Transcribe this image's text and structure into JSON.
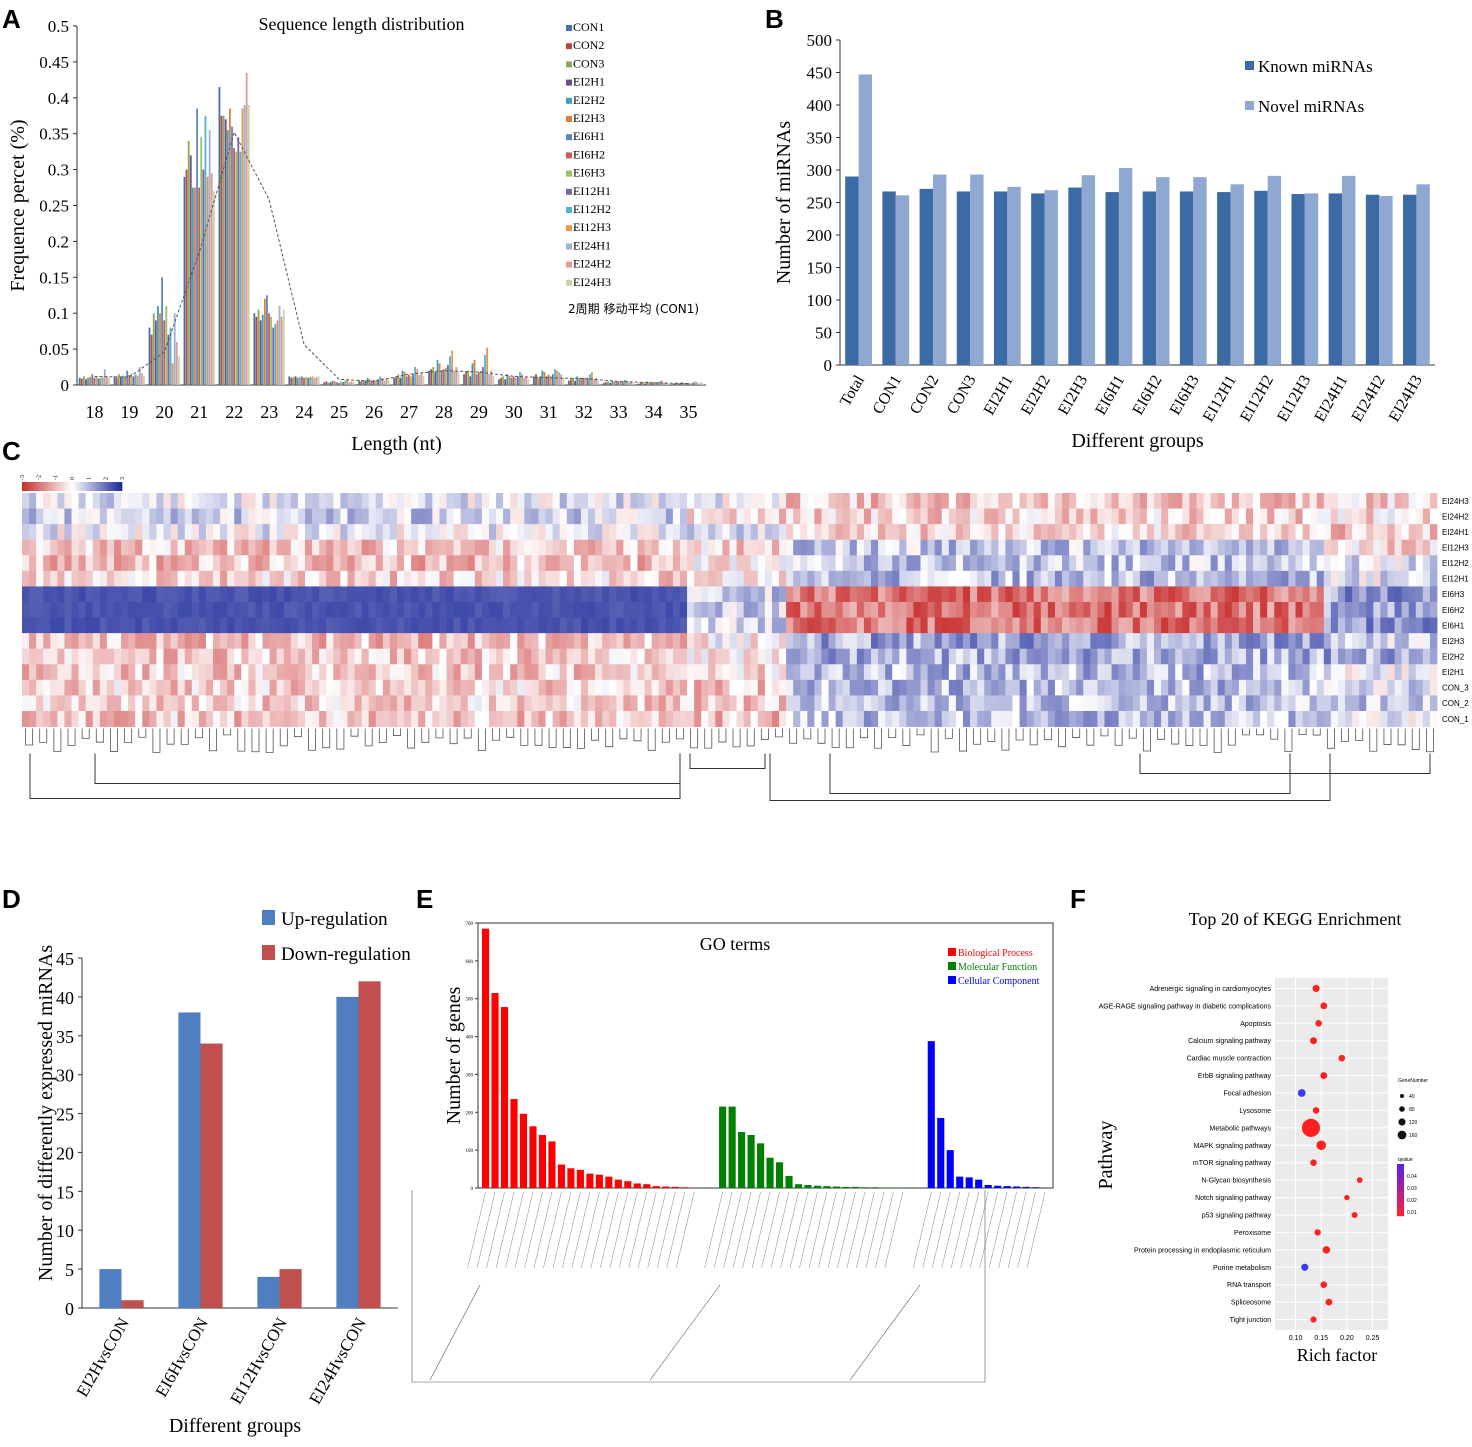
{
  "figure": {
    "panel_labels": [
      "A",
      "B",
      "C",
      "D",
      "E",
      "F"
    ]
  },
  "chart_data": [
    {
      "panel": "A",
      "type": "bar",
      "title": "Sequence length distribution",
      "xlabel": "Length (nt)",
      "ylabel": "Frequence percet (%)",
      "ylim": [
        0,
        0.5
      ],
      "yticks": [
        0,
        0.05,
        0.1,
        0.15,
        0.2,
        0.25,
        0.3,
        0.35,
        0.4,
        0.45,
        0.5
      ],
      "ytick_labels": [
        "0",
        "0.05",
        "0.1",
        "0.15",
        "0.2",
        "0.25",
        "0.3",
        "0.35",
        "0.4",
        "0.45",
        "0.5"
      ],
      "categories": [
        "18",
        "19",
        "20",
        "21",
        "22",
        "23",
        "24",
        "25",
        "26",
        "27",
        "28",
        "29",
        "30",
        "31",
        "32",
        "33",
        "34",
        "35"
      ],
      "series_names": [
        "CON1",
        "CON2",
        "CON3",
        "EI2H1",
        "EI2H2",
        "EI2H3",
        "EI6H1",
        "EI6H2",
        "EI6H3",
        "EI12H1",
        "EI12H2",
        "EI12H3",
        "EI24H1",
        "EI24H2",
        "EI24H3"
      ],
      "series_colors": [
        "#4a6fa5",
        "#b84a4a",
        "#8aab52",
        "#6b4f8c",
        "#3fa0b8",
        "#d9813a",
        "#5b86c2",
        "#c95a5a",
        "#9bbf61",
        "#7e63a3",
        "#52b5cc",
        "#e6964d",
        "#9cb0d6",
        "#e09a9a",
        "#c6d5a3"
      ],
      "values": [
        [
          0.01,
          0.009,
          0.012,
          0.008,
          0.01,
          0.011,
          0.015,
          0.01,
          0.012,
          0.009,
          0.01,
          0.011,
          0.022,
          0.012,
          0.01
        ],
        [
          0.012,
          0.01,
          0.015,
          0.011,
          0.013,
          0.012,
          0.02,
          0.014,
          0.016,
          0.012,
          0.015,
          0.013,
          0.025,
          0.016,
          0.012
        ],
        [
          0.08,
          0.07,
          0.1,
          0.09,
          0.11,
          0.1,
          0.15,
          0.09,
          0.11,
          0.07,
          0.08,
          0.03,
          0.1,
          0.06,
          0.04
        ],
        [
          0.29,
          0.3,
          0.34,
          0.32,
          0.275,
          0.275,
          0.385,
          0.275,
          0.345,
          0.3,
          0.375,
          0.29,
          0.355,
          0.295,
          0.27
        ],
        [
          0.415,
          0.375,
          0.375,
          0.37,
          0.355,
          0.385,
          0.36,
          0.33,
          0.325,
          0.345,
          0.325,
          0.385,
          0.39,
          0.435,
          0.39
        ],
        [
          0.1,
          0.095,
          0.105,
          0.09,
          0.098,
          0.12,
          0.125,
          0.1,
          0.095,
          0.08,
          0.085,
          0.09,
          0.11,
          0.095,
          0.105
        ],
        [
          0.012,
          0.01,
          0.011,
          0.012,
          0.01,
          0.011,
          0.012,
          0.01,
          0.011,
          0.01,
          0.011,
          0.012,
          0.01,
          0.011,
          0.012
        ],
        [
          0.004,
          0.005,
          0.003,
          0.004,
          0.006,
          0.005,
          0.004,
          0.003,
          0.005,
          0.004,
          0.006,
          0.008,
          0.004,
          0.005,
          0.004
        ],
        [
          0.006,
          0.005,
          0.007,
          0.006,
          0.01,
          0.008,
          0.006,
          0.007,
          0.006,
          0.008,
          0.012,
          0.01,
          0.006,
          0.009,
          0.007
        ],
        [
          0.01,
          0.012,
          0.015,
          0.01,
          0.02,
          0.018,
          0.012,
          0.014,
          0.012,
          0.015,
          0.025,
          0.022,
          0.014,
          0.018,
          0.012
        ],
        [
          0.02,
          0.022,
          0.025,
          0.018,
          0.035,
          0.03,
          0.02,
          0.022,
          0.024,
          0.028,
          0.04,
          0.048,
          0.02,
          0.025,
          0.018
        ],
        [
          0.015,
          0.018,
          0.02,
          0.012,
          0.03,
          0.035,
          0.015,
          0.018,
          0.02,
          0.025,
          0.042,
          0.052,
          0.015,
          0.02,
          0.012
        ],
        [
          0.008,
          0.01,
          0.012,
          0.008,
          0.015,
          0.012,
          0.01,
          0.012,
          0.01,
          0.012,
          0.018,
          0.015,
          0.01,
          0.012,
          0.008
        ],
        [
          0.012,
          0.015,
          0.01,
          0.012,
          0.02,
          0.018,
          0.012,
          0.014,
          0.012,
          0.015,
          0.022,
          0.02,
          0.018,
          0.015,
          0.01
        ],
        [
          0.006,
          0.008,
          0.01,
          0.006,
          0.012,
          0.01,
          0.008,
          0.01,
          0.008,
          0.01,
          0.015,
          0.018,
          0.008,
          0.01,
          0.006
        ],
        [
          0.003,
          0.004,
          0.005,
          0.003,
          0.006,
          0.005,
          0.004,
          0.005,
          0.004,
          0.005,
          0.007,
          0.006,
          0.004,
          0.005,
          0.003
        ],
        [
          0.002,
          0.003,
          0.004,
          0.002,
          0.005,
          0.004,
          0.003,
          0.004,
          0.003,
          0.004,
          0.005,
          0.006,
          0.003,
          0.004,
          0.002
        ],
        [
          0.002,
          0.003,
          0.003,
          0.002,
          0.004,
          0.003,
          0.002,
          0.003,
          0.002,
          0.003,
          0.005,
          0.004,
          0.002,
          0.003,
          0.002
        ]
      ],
      "trendline": {
        "label": "2周期 移动平均 (CON1)",
        "values": [
          0.012,
          0.011,
          0.046,
          0.185,
          0.352,
          0.258,
          0.056,
          0.008,
          0.005,
          0.015,
          0.02,
          0.018,
          0.012,
          0.01,
          0.009,
          0.005,
          0.003,
          0.002
        ]
      }
    },
    {
      "panel": "B",
      "type": "bar",
      "title": "",
      "xlabel": "Different groups",
      "ylabel": "Number of miRNAs",
      "ylim": [
        0,
        500
      ],
      "yticks": [
        0,
        50,
        100,
        150,
        200,
        250,
        300,
        350,
        400,
        450,
        500
      ],
      "ytick_labels": [
        "0",
        "50",
        "100",
        "150",
        "200",
        "250",
        "300",
        "350",
        "400",
        "450",
        "500"
      ],
      "categories": [
        "Total",
        "CON1",
        "CON2",
        "CON3",
        "EI2H1",
        "EI2H2",
        "EI2H3",
        "EI6H1",
        "EI6H2",
        "EI6H3",
        "EI12H1",
        "EI12H2",
        "EI12H3",
        "EI24H1",
        "EI24H2",
        "EI24H3"
      ],
      "series": [
        {
          "name": "Known miRNAs",
          "color": "#3c6aa5",
          "values": [
            290,
            267,
            271,
            267,
            267,
            264,
            273,
            266,
            267,
            267,
            266,
            268,
            263,
            264,
            262,
            262
          ]
        },
        {
          "name": "Novel miRNAs",
          "color": "#8fa8d2",
          "values": [
            447,
            261,
            293,
            293,
            274,
            269,
            292,
            303,
            289,
            289,
            278,
            291,
            264,
            291,
            260,
            278
          ]
        }
      ]
    },
    {
      "panel": "C",
      "type": "heatmap",
      "title": "",
      "color_scale": {
        "low": "#c93030",
        "mid": "#ffffff",
        "high": "#1c2a9a"
      },
      "legend_ticks": [
        "-3",
        "-2",
        "-1",
        "0",
        "1",
        "2",
        "3"
      ],
      "rows": [
        "EI24H3",
        "EI24H2",
        "EI24H1",
        "EI12H3",
        "EI12H2",
        "EI12H1",
        "EI6H3",
        "EI6H2",
        "EI6H1",
        "EI2H3",
        "EI2H2",
        "EI2H1",
        "CON_3",
        "CON_2",
        "CON_1"
      ],
      "column_count": 200,
      "cluster_pattern": [
        {
          "cols": [
            0,
            94
          ],
          "values": [
            0.2,
            0.4,
            0.1,
            -0.5,
            -0.6,
            -0.4,
            1.6,
            1.6,
            1.6,
            -0.6,
            -0.5,
            -0.5,
            -0.4,
            -0.4,
            -0.5
          ]
        },
        {
          "cols": [
            94,
            108
          ],
          "values": [
            0.1,
            -0.3,
            0.2,
            -0.4,
            -0.2,
            -0.2,
            0.4,
            0.4,
            0.4,
            -0.1,
            -0.2,
            -0.3,
            -0.5,
            -0.5,
            -0.6
          ]
        },
        {
          "cols": [
            108,
            184
          ],
          "values": [
            -0.5,
            -0.4,
            -0.4,
            0.5,
            0.5,
            0.6,
            -1.3,
            -1.3,
            -1.3,
            0.8,
            0.7,
            0.6,
            0.6,
            0.5,
            0.6
          ]
        },
        {
          "cols": [
            184,
            200
          ],
          "values": [
            -0.4,
            -0.3,
            -0.5,
            -0.3,
            0.2,
            0.2,
            0.9,
            0.9,
            0.9,
            0.4,
            0.8,
            0.1,
            0.3,
            0.5,
            0.2
          ]
        }
      ]
    },
    {
      "panel": "D",
      "type": "bar",
      "title": "",
      "xlabel": "Different groups",
      "ylabel": "Number of differently expressed miRNAs",
      "ylim": [
        0,
        45
      ],
      "yticks": [
        0,
        5,
        10,
        15,
        20,
        25,
        30,
        35,
        40,
        45
      ],
      "ytick_labels": [
        "0",
        "5",
        "10",
        "15",
        "20",
        "25",
        "30",
        "35",
        "40",
        "45"
      ],
      "categories": [
        "EI2HvsCON",
        "EI6HvsCON",
        "EI12HvsCON",
        "EI24HvsCON"
      ],
      "series": [
        {
          "name": "Up-regulation",
          "color": "#4f7fc1",
          "values": [
            5,
            38,
            4,
            40
          ]
        },
        {
          "name": "Down-regulation",
          "color": "#c0504d",
          "values": [
            1,
            34,
            5,
            42
          ]
        }
      ]
    },
    {
      "panel": "E",
      "type": "bar",
      "title": "GO terms",
      "xlabel": "",
      "ylabel": "Number of genes",
      "ylim": [
        0,
        700
      ],
      "yticks": [
        0,
        100,
        200,
        300,
        400,
        500,
        600,
        700
      ],
      "ytick_labels": [
        "0",
        "100",
        "200",
        "300",
        "400",
        "500",
        "600",
        "700"
      ],
      "series": [
        {
          "name": "Biological Process",
          "color": "#ff0000",
          "values": [
            685,
            515,
            478,
            235,
            196,
            163,
            140,
            123,
            62,
            52,
            48,
            38,
            35,
            30,
            22,
            18,
            12,
            10,
            5,
            4,
            3,
            2,
            1
          ]
        },
        {
          "name": "Molecular Function",
          "color": "#008000",
          "values": [
            215,
            215,
            148,
            140,
            118,
            80,
            68,
            32,
            10,
            8,
            6,
            5,
            4,
            3,
            3,
            2,
            2,
            1,
            1,
            1
          ]
        },
        {
          "name": "Cellular Component",
          "color": "#0000ff",
          "values": [
            388,
            185,
            100,
            30,
            28,
            22,
            8,
            6,
            5,
            4,
            3,
            2,
            1
          ]
        }
      ]
    },
    {
      "panel": "F",
      "type": "scatter",
      "title": "Top 20 of KEGG Enrichment",
      "xlabel": "Rich factor",
      "ylabel": "Pathway",
      "xticks": [
        0.1,
        0.15,
        0.2,
        0.25
      ],
      "xtick_labels": [
        "0.10",
        "0.15",
        "0.20",
        "0.25"
      ],
      "xlim": [
        0.06,
        0.28
      ],
      "pathways": [
        "Adrenergic signaling in cardiomyocytes",
        "AGE-RAGE signaling pathway in diabetic complications",
        "Apoptosis",
        "Calcium signaling pathway",
        "Cardiac muscle contraction",
        "ErbB signaling pathway",
        "Focal adhesion",
        "Lysosome",
        "Metabolic pathways",
        "MAPK signaling pathway",
        "mTOR signaling pathway",
        "N-Glycan biosynthesis",
        "Notch signaling pathway",
        "p53 signaling pathway",
        "Peroxisome",
        "Protein processing in endoplasmic reticulum",
        "Purine metabolism",
        "RNA transport",
        "Spliceosome",
        "Tight junction"
      ],
      "rich_factor": [
        0.14,
        0.155,
        0.145,
        0.135,
        0.19,
        0.155,
        0.112,
        0.14,
        0.13,
        0.15,
        0.135,
        0.225,
        0.2,
        0.215,
        0.143,
        0.16,
        0.118,
        0.155,
        0.165,
        0.135
      ],
      "gene_number": [
        12,
        10,
        9,
        11,
        9,
        10,
        16,
        9,
        160,
        30,
        9,
        5,
        4,
        6,
        8,
        14,
        12,
        9,
        10,
        7
      ],
      "qvalue": [
        0.01,
        0.01,
        0.01,
        0.01,
        0.01,
        0.01,
        0.04,
        0.01,
        0.01,
        0.01,
        0.01,
        0.01,
        0.01,
        0.01,
        0.01,
        0.01,
        0.04,
        0.01,
        0.01,
        0.01
      ],
      "size_legend_title": "GeneNumber",
      "size_legend_labels": [
        "40",
        "80",
        "120",
        "160"
      ],
      "color_legend_title": "qvalue",
      "color_legend_labels": [
        "0.04",
        "0.03",
        "0.02",
        "0.01"
      ]
    }
  ]
}
